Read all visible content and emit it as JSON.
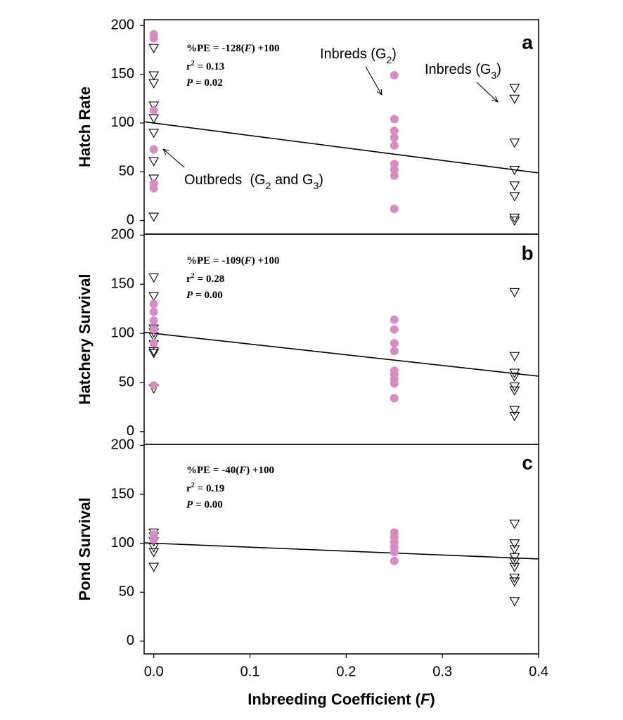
{
  "chart_data": [
    {
      "type": "scatter",
      "panel": "a",
      "ylabel": "Hatch Rate",
      "xlim": [
        -0.01,
        0.4
      ],
      "ylim": [
        -14,
        206
      ],
      "yticks": [
        0,
        50,
        100,
        150,
        200
      ],
      "series": [
        {
          "marker": "triangle",
          "color": "#000000",
          "x": [
            0,
            0,
            0,
            0,
            0,
            0,
            0,
            0,
            0,
            0.375,
            0.375,
            0.375,
            0.375,
            0.375,
            0.375,
            0.375,
            0.375
          ],
          "values": [
            177,
            149,
            141,
            118,
            105,
            90,
            61,
            43,
            4,
            136,
            125,
            80,
            52,
            36,
            25,
            3,
            0
          ]
        },
        {
          "marker": "circle",
          "color": "#d98cc4",
          "x": [
            0,
            0,
            0,
            0,
            0,
            0,
            0.25,
            0.25,
            0.25,
            0.25,
            0.25,
            0.25,
            0.25,
            0.25,
            0.25
          ],
          "values": [
            191,
            187,
            113,
            73,
            38,
            33,
            149,
            104,
            92,
            85,
            77,
            58,
            52,
            46,
            12
          ]
        }
      ],
      "fit": {
        "slope": -128,
        "intercept": 100
      },
      "equation": [
        "%PE = -128(",
        "F",
        ") +100"
      ],
      "stats": [
        {
          "symbol": "r",
          "sup": "2",
          "text": "= 0.13"
        },
        {
          "symbol": "P",
          "text": "= 0.02"
        }
      ],
      "annotations": [
        {
          "parts": [
            "Inbreds (G",
            "2",
            ")"
          ]
        },
        {
          "parts": [
            "Inbreds (G",
            "3",
            ")"
          ]
        },
        {
          "parts": [
            "Outbreds  (G",
            "2",
            " and G",
            "3",
            ")"
          ]
        }
      ]
    },
    {
      "type": "scatter",
      "panel": "b",
      "ylabel": "Hatchery Survival",
      "xlim": [
        -0.01,
        0.4
      ],
      "ylim": [
        -13,
        201
      ],
      "yticks": [
        0,
        50,
        100,
        150,
        200
      ],
      "series": [
        {
          "marker": "triangle",
          "color": "#000000",
          "x": [
            0,
            0,
            0,
            0,
            0,
            0,
            0,
            0,
            0,
            0.375,
            0.375,
            0.375,
            0.375,
            0.375,
            0.375,
            0.375,
            0.375
          ],
          "values": [
            157,
            138,
            105,
            101,
            97,
            89,
            82,
            80,
            44,
            142,
            77,
            60,
            56,
            46,
            42,
            22,
            16
          ]
        },
        {
          "marker": "circle",
          "color": "#d98cc4",
          "x": [
            0,
            0,
            0,
            0,
            0,
            0,
            0.25,
            0.25,
            0.25,
            0.25,
            0.25,
            0.25,
            0.25,
            0.25,
            0.25
          ],
          "values": [
            130,
            122,
            113,
            104,
            90,
            47,
            114,
            104,
            90,
            82,
            62,
            58,
            53,
            49,
            34
          ]
        }
      ],
      "fit": {
        "slope": -109,
        "intercept": 100
      },
      "equation": [
        "%PE = -109(",
        "F",
        ") +100"
      ],
      "stats": [
        {
          "symbol": "r",
          "sup": "2",
          "text": "= 0.28"
        },
        {
          "symbol": "P",
          "text": "= 0.00"
        }
      ]
    },
    {
      "type": "scatter",
      "panel": "c",
      "ylabel": "Pond Survival",
      "xlim": [
        -0.01,
        0.4
      ],
      "ylim": [
        -13,
        201
      ],
      "yticks": [
        0,
        50,
        100,
        150,
        200
      ],
      "xticks": [
        {
          "value": 0,
          "label": "0.0"
        },
        0.1,
        0.2,
        0.3,
        0.4
      ],
      "xlabel": [
        "Inbreeding Coefficient (",
        "F",
        ")"
      ],
      "series": [
        {
          "marker": "triangle",
          "color": "#000000",
          "x": [
            0,
            0,
            0,
            0,
            0,
            0,
            0.375,
            0.375,
            0.375,
            0.375,
            0.375,
            0.375,
            0.375,
            0.375,
            0.375
          ],
          "values": [
            111,
            107,
            102,
            96,
            91,
            76,
            120,
            100,
            94,
            86,
            81,
            76,
            65,
            61,
            41
          ]
        },
        {
          "marker": "circle",
          "color": "#d98cc4",
          "x": [
            0,
            0,
            0.25,
            0.25,
            0.25,
            0.25,
            0.25,
            0.25
          ],
          "values": [
            109,
            104,
            111,
            106,
            101,
            96,
            91,
            82
          ]
        }
      ],
      "fit": {
        "slope": -40,
        "intercept": 100
      },
      "equation": [
        "%PE = -40(",
        "F",
        ") +100"
      ],
      "stats": [
        {
          "symbol": "r",
          "sup": "2",
          "text": "= 0.19"
        },
        {
          "symbol": "P",
          "text": "= 0.00"
        }
      ]
    }
  ]
}
